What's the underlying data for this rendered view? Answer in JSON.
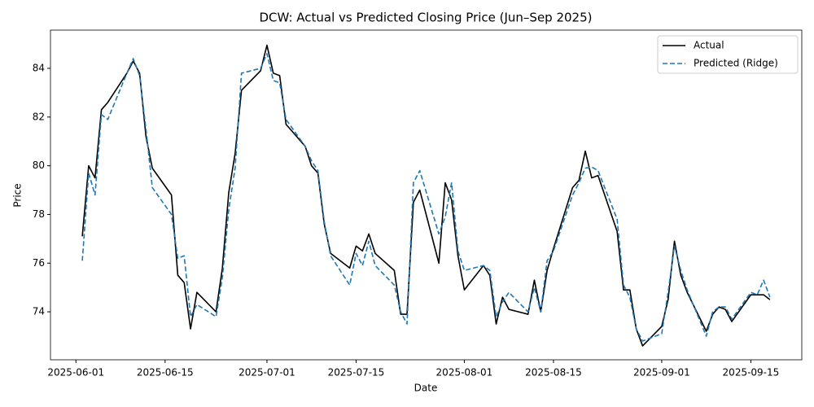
{
  "chart_data": {
    "type": "line",
    "title": "DCW: Actual vs Predicted Closing Price (Jun–Sep 2025)",
    "x_label": "Date",
    "y_label": "Price",
    "x": [
      "2025-06-02",
      "2025-06-03",
      "2025-06-04",
      "2025-06-05",
      "2025-06-06",
      "2025-06-09",
      "2025-06-10",
      "2025-06-11",
      "2025-06-12",
      "2025-06-13",
      "2025-06-16",
      "2025-06-17",
      "2025-06-18",
      "2025-06-19",
      "2025-06-20",
      "2025-06-23",
      "2025-06-24",
      "2025-06-25",
      "2025-06-26",
      "2025-06-27",
      "2025-06-30",
      "2025-07-01",
      "2025-07-02",
      "2025-07-03",
      "2025-07-04",
      "2025-07-07",
      "2025-07-08",
      "2025-07-09",
      "2025-07-10",
      "2025-07-11",
      "2025-07-14",
      "2025-07-15",
      "2025-07-16",
      "2025-07-17",
      "2025-07-18",
      "2025-07-21",
      "2025-07-22",
      "2025-07-23",
      "2025-07-24",
      "2025-07-25",
      "2025-07-28",
      "2025-07-29",
      "2025-07-30",
      "2025-07-31",
      "2025-08-01",
      "2025-08-04",
      "2025-08-05",
      "2025-08-06",
      "2025-08-07",
      "2025-08-08",
      "2025-08-11",
      "2025-08-12",
      "2025-08-13",
      "2025-08-14",
      "2025-08-15",
      "2025-08-18",
      "2025-08-19",
      "2025-08-20",
      "2025-08-21",
      "2025-08-22",
      "2025-08-25",
      "2025-08-26",
      "2025-08-27",
      "2025-08-28",
      "2025-08-29",
      "2025-09-01",
      "2025-09-02",
      "2025-09-03",
      "2025-09-04",
      "2025-09-05",
      "2025-09-08",
      "2025-09-09",
      "2025-09-10",
      "2025-09-11",
      "2025-09-12",
      "2025-09-15",
      "2025-09-16",
      "2025-09-17",
      "2025-09-18"
    ],
    "series": [
      {
        "name": "Actual",
        "color": "#000000",
        "dash": "solid",
        "values": [
          77.1,
          80.0,
          79.5,
          82.3,
          82.6,
          83.8,
          84.3,
          83.8,
          81.2,
          79.9,
          78.8,
          75.5,
          75.2,
          73.3,
          74.8,
          74.0,
          75.8,
          78.9,
          80.5,
          83.1,
          83.9,
          84.95,
          83.8,
          83.7,
          81.7,
          80.8,
          80.0,
          79.7,
          77.6,
          76.4,
          75.8,
          76.7,
          76.5,
          77.2,
          76.4,
          75.7,
          73.9,
          73.9,
          78.5,
          79.0,
          76.0,
          79.3,
          78.6,
          76.3,
          74.9,
          75.9,
          75.5,
          73.5,
          74.6,
          74.1,
          73.9,
          75.3,
          74.0,
          75.7,
          76.6,
          79.1,
          79.4,
          80.6,
          79.5,
          79.6,
          77.3,
          74.9,
          74.9,
          73.3,
          72.6,
          73.4,
          74.5,
          76.9,
          75.5,
          74.8,
          73.2,
          73.9,
          74.2,
          74.1,
          73.6,
          74.7,
          74.7,
          74.7,
          74.5
        ]
      },
      {
        "name": "Predicted (Ridge)",
        "color": "#1f77b4",
        "dash": "dashed",
        "values": [
          76.1,
          79.7,
          78.8,
          82.1,
          81.9,
          83.8,
          84.4,
          83.7,
          81.5,
          79.1,
          78.0,
          76.2,
          76.3,
          73.8,
          74.3,
          73.8,
          75.4,
          78.2,
          79.9,
          83.8,
          84.0,
          84.6,
          83.5,
          83.4,
          81.9,
          80.8,
          80.2,
          79.8,
          77.7,
          76.3,
          75.1,
          76.4,
          75.9,
          76.9,
          75.9,
          75.1,
          74.0,
          73.5,
          79.3,
          79.8,
          77.2,
          77.9,
          79.3,
          76.5,
          75.7,
          75.9,
          75.7,
          73.8,
          74.4,
          74.8,
          74.0,
          75.0,
          74.0,
          76.1,
          76.5,
          78.8,
          79.3,
          79.9,
          79.95,
          79.8,
          77.8,
          75.1,
          74.6,
          73.3,
          72.8,
          73.1,
          74.8,
          76.7,
          75.7,
          74.9,
          73.0,
          74.0,
          74.2,
          74.2,
          73.7,
          74.8,
          74.7,
          75.3,
          74.6
        ]
      }
    ],
    "xlim": [
      "2025-05-28",
      "2025-09-23"
    ],
    "xticks": [
      "2025-06-01",
      "2025-06-15",
      "2025-07-01",
      "2025-07-15",
      "2025-08-01",
      "2025-08-15",
      "2025-09-01",
      "2025-09-15"
    ],
    "ylim": [
      72.03,
      85.57
    ],
    "yticks": [
      74,
      76,
      78,
      80,
      82,
      84
    ],
    "legend": "upper right",
    "grid": false
  }
}
